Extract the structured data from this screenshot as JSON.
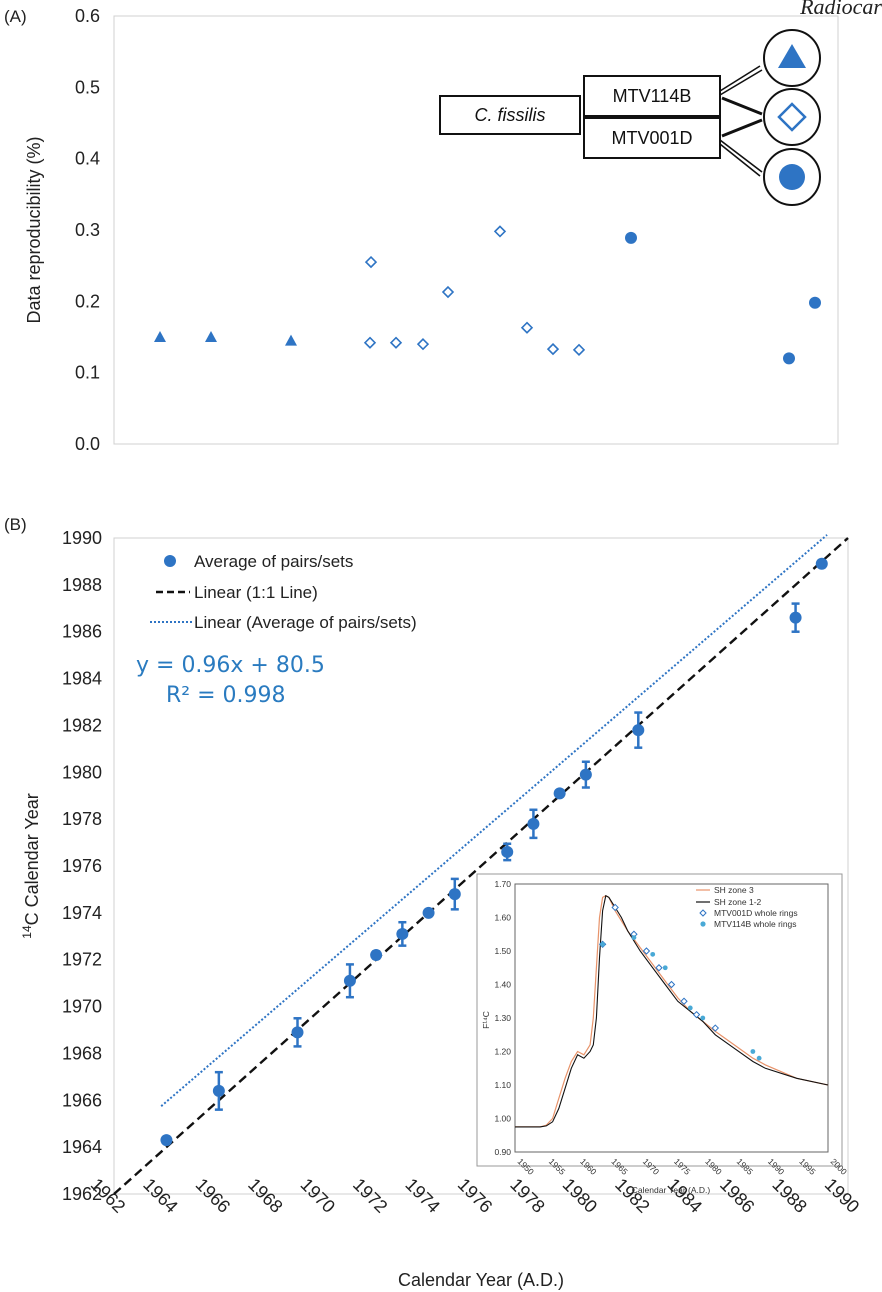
{
  "header_word": "Radiocar",
  "colors": {
    "blue": "#2e74c4",
    "black": "#111111",
    "orange": "#e8936a",
    "cyan": "#49a9d6",
    "grid": "#d9d9d9"
  },
  "chart_data": [
    {
      "panel": "(A)",
      "type": "scatter",
      "ylabel": "Data reproducibility (%)",
      "ylim": [
        0.0,
        0.6
      ],
      "yticks": [
        "0.0",
        "0.1",
        "0.2",
        "0.3",
        "0.4",
        "0.5",
        "0.6"
      ],
      "series": [
        {
          "name": "MTV114B",
          "marker": "filled-triangle",
          "values": [
            0.15,
            0.15,
            0.145
          ]
        },
        {
          "name": "MTV114B",
          "marker": "open-diamond",
          "values": [
            0.255,
            0.142,
            0.142,
            0.14,
            0.213,
            0.298,
            0.163,
            0.133,
            0.132
          ]
        },
        {
          "name": "MTV001D",
          "marker": "filled-circle",
          "values": [
            0.289,
            0.12,
            0.198
          ]
        }
      ],
      "point_order_x": [
        1,
        2,
        3,
        4,
        5,
        6,
        7,
        8,
        9,
        10,
        11,
        12,
        13,
        14,
        15
      ],
      "legend": {
        "species": "C. fissilis",
        "samples": [
          "MTV114B",
          "MTV001D"
        ]
      }
    },
    {
      "panel": "(B)",
      "type": "scatter",
      "xlabel": "Calendar Year (A.D.)",
      "ylabel_sup": "14",
      "ylabel": "C Calendar Year",
      "xlim": [
        1962,
        1990
      ],
      "ylim": [
        1962,
        1990
      ],
      "xticks": [
        "1962",
        "1964",
        "1966",
        "1968",
        "1970",
        "1972",
        "1974",
        "1976",
        "1978",
        "1980",
        "1982",
        "1984",
        "1986",
        "1988",
        "1990"
      ],
      "yticks": [
        "1962",
        "1964",
        "1966",
        "1968",
        "1970",
        "1972",
        "1974",
        "1976",
        "1978",
        "1980",
        "1982",
        "1984",
        "1986",
        "1988",
        "1990"
      ],
      "series": [
        {
          "name": "Average of pairs/sets",
          "x": [
            1964,
            1966,
            1969,
            1971,
            1972,
            1973,
            1974,
            1975,
            1977,
            1978,
            1979,
            1980,
            1982,
            1988,
            1989
          ],
          "y": [
            1964.3,
            1966.4,
            1968.9,
            1971.1,
            1972.2,
            1973.1,
            1974.0,
            1974.8,
            1976.6,
            1977.8,
            1979.1,
            1979.9,
            1981.8,
            1986.6,
            1988.9
          ],
          "err": [
            0.1,
            0.8,
            0.6,
            0.7,
            0.15,
            0.5,
            0.1,
            0.65,
            0.35,
            0.6,
            0.1,
            0.55,
            0.75,
            0.6,
            0.15
          ]
        }
      ],
      "lines": [
        {
          "name": "Linear (1:1 Line)",
          "slope": 1.0,
          "intercept": 0.0,
          "style": "dashed"
        },
        {
          "name": "Linear (Average of pairs/sets)",
          "slope": 0.96,
          "intercept": 80.5,
          "style": "dotted"
        }
      ],
      "annotations": {
        "equation": "y = 0.96x + 80.5",
        "r2": "R² = 0.998"
      },
      "inset": {
        "type": "line",
        "xlabel": "Calendar Year (A.D.)",
        "ylabel": "F¹⁴C",
        "xlim": [
          1950,
          2000
        ],
        "ylim": [
          0.9,
          1.7
        ],
        "xticks": [
          "1950",
          "1955",
          "1960",
          "1965",
          "1970",
          "1975",
          "1980",
          "1985",
          "1990",
          "1995",
          "2000"
        ],
        "yticks": [
          "0.90",
          "1.00",
          "1.10",
          "1.20",
          "1.30",
          "1.40",
          "1.50",
          "1.60",
          "1.70"
        ],
        "series": [
          {
            "name": "SH zone 3",
            "x": [
              1950,
              1954,
              1955,
              1956,
              1957,
              1958,
              1959,
              1960,
              1961,
              1962,
              1962.5,
              1963,
              1963.5,
              1964,
              1964.5,
              1965,
              1966,
              1967,
              1968,
              1970,
              1972,
              1974,
              1976,
              1978,
              1980,
              1982,
              1985,
              1988,
              1990,
              1995,
              2000
            ],
            "y": [
              0.975,
              0.975,
              0.98,
              1.0,
              1.06,
              1.12,
              1.17,
              1.2,
              1.19,
              1.22,
              1.3,
              1.45,
              1.6,
              1.66,
              1.665,
              1.66,
              1.62,
              1.59,
              1.56,
              1.51,
              1.46,
              1.41,
              1.36,
              1.32,
              1.29,
              1.26,
              1.22,
              1.18,
              1.16,
              1.12,
              1.1
            ]
          },
          {
            "name": "SH zone 1-2",
            "x": [
              1950,
              1954,
              1955,
              1956,
              1957,
              1958,
              1959,
              1960,
              1961,
              1962,
              1962.5,
              1963,
              1963.5,
              1964,
              1964.5,
              1965,
              1966,
              1967,
              1968,
              1970,
              1972,
              1974,
              1976,
              1978,
              1980,
              1982,
              1985,
              1988,
              1990,
              1995,
              2000
            ],
            "y": [
              0.975,
              0.975,
              0.978,
              0.99,
              1.03,
              1.09,
              1.15,
              1.19,
              1.18,
              1.2,
              1.22,
              1.3,
              1.48,
              1.62,
              1.665,
              1.66,
              1.63,
              1.6,
              1.56,
              1.5,
              1.45,
              1.4,
              1.35,
              1.32,
              1.29,
              1.25,
              1.21,
              1.17,
              1.15,
              1.12,
              1.1
            ]
          },
          {
            "name": "MTV001D whole rings",
            "marker": "open-diamond",
            "x": [
              1964,
              1966,
              1969,
              1971,
              1973,
              1975,
              1977,
              1979,
              1982
            ],
            "y": [
              1.52,
              1.63,
              1.55,
              1.5,
              1.45,
              1.4,
              1.35,
              1.31,
              1.27
            ]
          },
          {
            "name": "MTV114B whole rings",
            "marker": "filled-circle",
            "x": [
              1964,
              1969,
              1972,
              1974,
              1978,
              1980,
              1988,
              1989
            ],
            "y": [
              1.52,
              1.54,
              1.49,
              1.45,
              1.33,
              1.3,
              1.2,
              1.18
            ]
          }
        ]
      }
    }
  ]
}
